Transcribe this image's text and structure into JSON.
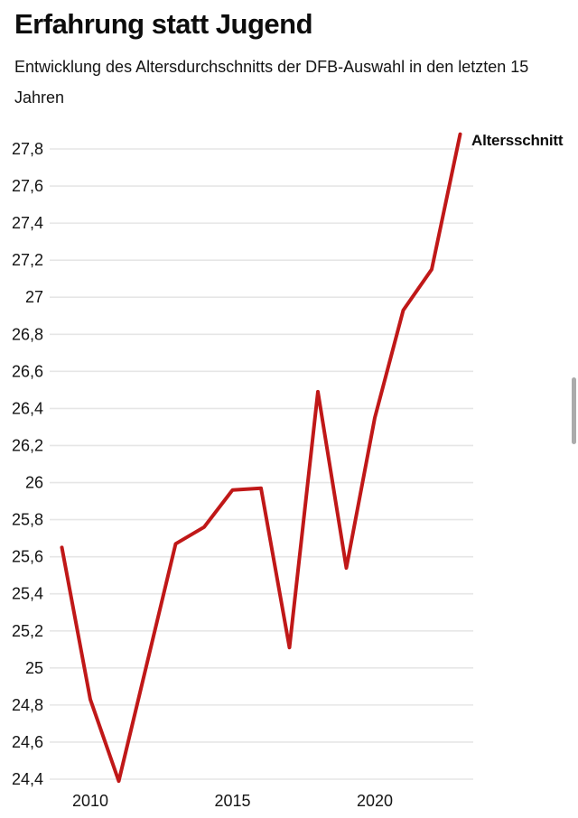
{
  "header": {
    "title": "Erfahrung statt Jugend",
    "subtitle_lines": [
      "Entwicklung des Altersdurchschnitts der DFB-Auswahl in den letzten 15",
      "Jahren"
    ]
  },
  "chart_data": {
    "type": "line",
    "title": "Erfahrung statt Jugend",
    "subtitle": "Entwicklung des Altersdurchschnitts der DFB-Auswahl in den letzten 15 Jahren",
    "x": [
      2009,
      2010,
      2011,
      2012,
      2013,
      2014,
      2015,
      2016,
      2017,
      2018,
      2019,
      2020,
      2021,
      2022,
      2023
    ],
    "series": [
      {
        "name": "Altersschnitt",
        "values": [
          25.65,
          24.83,
          24.39,
          25.03,
          25.67,
          25.76,
          25.96,
          25.97,
          25.11,
          26.49,
          25.54,
          26.35,
          26.93,
          27.15,
          27.88
        ]
      }
    ],
    "xlabel": "",
    "ylabel": "",
    "ylim": [
      24.4,
      27.9
    ],
    "grid": true,
    "legend_position": "line-end",
    "y_tick_labels": [
      "27,8",
      "27,6",
      "27,4",
      "27,2",
      "27",
      "26,8",
      "26,6",
      "26,4",
      "26,2",
      "26",
      "25,8",
      "25,6",
      "25,4",
      "25,2",
      "25",
      "24,8",
      "24,6",
      "24,4"
    ],
    "x_tick_labels": [
      "2010",
      "2015",
      "2020"
    ]
  },
  "colors": {
    "line": "#c01818",
    "grid": "#e6e6e6",
    "text": "#141414",
    "scrollbar": "#ababab"
  }
}
